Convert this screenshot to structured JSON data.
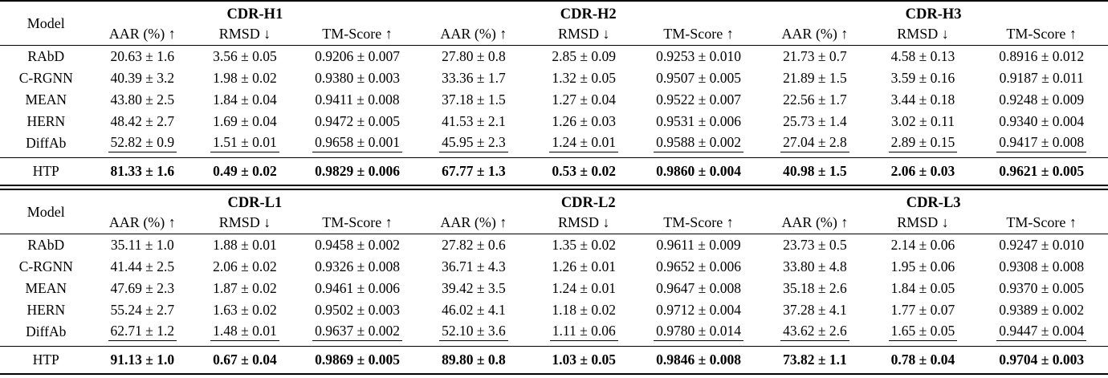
{
  "colors": {
    "background": "#ffffff",
    "text": "#000000",
    "rule": "#000000"
  },
  "tables": [
    {
      "model_header": "Model",
      "groups": [
        "CDR-H1",
        "CDR-H2",
        "CDR-H3"
      ],
      "metrics": [
        "AAR (%) ↑",
        "RMSD ↓",
        "TM-Score ↑"
      ],
      "rows": [
        {
          "model": "RAbD",
          "emphasis": "none",
          "values": [
            "20.63 ± 1.6",
            "3.56 ± 0.05",
            "0.9206 ± 0.007",
            "27.80 ± 0.8",
            "2.85 ± 0.09",
            "0.9253 ± 0.010",
            "21.73 ± 0.7",
            "4.58 ± 0.13",
            "0.8916 ± 0.012"
          ]
        },
        {
          "model": "C-RGNN",
          "emphasis": "none",
          "values": [
            "40.39 ± 3.2",
            "1.98 ± 0.02",
            "0.9380 ± 0.003",
            "33.36 ± 1.7",
            "1.32 ± 0.05",
            "0.9507 ± 0.005",
            "21.89 ± 1.5",
            "3.59 ± 0.16",
            "0.9187 ± 0.011"
          ]
        },
        {
          "model": "MEAN",
          "emphasis": "none",
          "values": [
            "43.80 ± 2.5",
            "1.84 ± 0.04",
            "0.9411 ± 0.008",
            "37.18 ± 1.5",
            "1.27 ± 0.04",
            "0.9522 ± 0.007",
            "22.56 ± 1.7",
            "3.44 ± 0.18",
            "0.9248 ± 0.009"
          ]
        },
        {
          "model": "HERN",
          "emphasis": "none",
          "values": [
            "48.42 ± 2.7",
            "1.69 ± 0.04",
            "0.9472 ± 0.005",
            "41.53 ± 2.1",
            "1.26 ± 0.03",
            "0.9531 ± 0.006",
            "25.73 ± 1.4",
            "3.02 ± 0.11",
            "0.9340 ± 0.004"
          ]
        },
        {
          "model": "DiffAb",
          "emphasis": "underline",
          "values": [
            "52.82 ± 0.9",
            "1.51 ± 0.01",
            "0.9658 ± 0.001",
            "45.95 ± 2.3",
            "1.24 ± 0.01",
            "0.9588 ± 0.002",
            "27.04 ± 2.8",
            "2.89 ± 0.15",
            "0.9417 ± 0.008"
          ]
        },
        {
          "model": "HTP",
          "emphasis": "bold",
          "values": [
            "81.33 ± 1.6",
            "0.49 ± 0.02",
            "0.9829 ± 0.006",
            "67.77 ± 1.3",
            "0.53 ± 0.02",
            "0.9860 ± 0.004",
            "40.98 ± 1.5",
            "2.06 ± 0.03",
            "0.9621 ± 0.005"
          ]
        }
      ]
    },
    {
      "model_header": "Model",
      "groups": [
        "CDR-L1",
        "CDR-L2",
        "CDR-L3"
      ],
      "metrics": [
        "AAR (%) ↑",
        "RMSD ↓",
        "TM-Score ↑"
      ],
      "rows": [
        {
          "model": "RAbD",
          "emphasis": "none",
          "values": [
            "35.11 ± 1.0",
            "1.88 ± 0.01",
            "0.9458 ± 0.002",
            "27.82 ± 0.6",
            "1.35 ± 0.02",
            "0.9611 ± 0.009",
            "23.73 ± 0.5",
            "2.14 ± 0.06",
            "0.9247 ± 0.010"
          ]
        },
        {
          "model": "C-RGNN",
          "emphasis": "none",
          "values": [
            "41.44 ± 2.5",
            "2.06 ± 0.02",
            "0.9326 ± 0.008",
            "36.71 ± 4.3",
            "1.26 ± 0.01",
            "0.9652 ± 0.006",
            "33.80 ± 4.8",
            "1.95 ± 0.06",
            "0.9308 ± 0.008"
          ]
        },
        {
          "model": "MEAN",
          "emphasis": "none",
          "values": [
            "47.69 ± 2.3",
            "1.87 ± 0.02",
            "0.9461 ± 0.006",
            "39.42 ± 3.5",
            "1.24 ± 0.01",
            "0.9647 ± 0.008",
            "35.18 ± 2.6",
            "1.84 ± 0.05",
            "0.9370 ± 0.005"
          ]
        },
        {
          "model": "HERN",
          "emphasis": "none",
          "values": [
            "55.24 ± 2.7",
            "1.63 ± 0.02",
            "0.9502 ± 0.003",
            "46.02 ± 4.1",
            "1.18 ± 0.02",
            "0.9712 ± 0.004",
            "37.28 ± 4.1",
            "1.77 ± 0.07",
            "0.9389 ± 0.002"
          ]
        },
        {
          "model": "DiffAb",
          "emphasis": "underline",
          "values": [
            "62.71 ± 1.2",
            "1.48 ± 0.01",
            "0.9637 ± 0.002",
            "52.10 ± 3.6",
            "1.11 ± 0.06",
            "0.9780 ± 0.014",
            "43.62 ± 2.6",
            "1.65 ± 0.05",
            "0.9447 ± 0.004"
          ]
        },
        {
          "model": "HTP",
          "emphasis": "bold",
          "values": [
            "91.13 ± 1.0",
            "0.67 ± 0.04",
            "0.9869 ± 0.005",
            "89.80 ± 0.8",
            "1.03 ± 0.05",
            "0.9846 ± 0.008",
            "73.82 ± 1.1",
            "0.78 ± 0.04",
            "0.9704 ± 0.003"
          ]
        }
      ]
    }
  ]
}
